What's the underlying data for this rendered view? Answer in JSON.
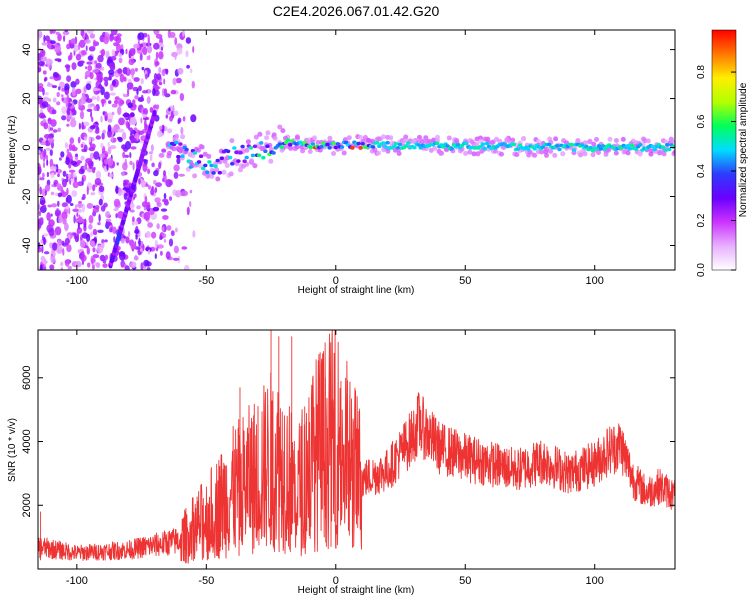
{
  "figure_title": "C2E4.2026.067.01.42.G20",
  "chart_data": [
    {
      "type": "heatmap",
      "id": "spectrogram",
      "xlabel": "Height of straight line (km)",
      "ylabel": "Frequency (Hz)",
      "xlim": [
        -115,
        131
      ],
      "ylim": [
        -50,
        48
      ],
      "xticks": [
        -100,
        -50,
        0,
        50,
        100
      ],
      "yticks": [
        -40,
        -20,
        0,
        20,
        40
      ],
      "colorbar": {
        "label": "Normalized spectral amplitude",
        "range": [
          0,
          0.97
        ],
        "ticks": [
          "0.0",
          "0.2",
          "0.4",
          "0.6",
          "0.8"
        ],
        "tick_values": [
          0.0,
          0.2,
          0.4,
          0.6,
          0.8
        ],
        "colors": [
          "#ffffff",
          "#e8b0ff",
          "#cc33ff",
          "#6a00ff",
          "#2d3cff",
          "#00ddff",
          "#00ff5a",
          "#b4ff00",
          "#ffee00",
          "#ff7700",
          "#ff0000"
        ]
      },
      "features": {
        "noise_region_x": [
          -115,
          -55
        ],
        "diagonal_line": {
          "x": [
            -87,
            -70
          ],
          "y": [
            -48,
            14
          ]
        },
        "carrier_track": [
          {
            "x": -62,
            "y": 1
          },
          {
            "x": -55,
            "y": -5
          },
          {
            "x": -48,
            "y": -8
          },
          {
            "x": -40,
            "y": -4
          },
          {
            "x": -30,
            "y": -1
          },
          {
            "x": -20,
            "y": 2
          },
          {
            "x": -10,
            "y": 1
          },
          {
            "x": 0,
            "y": 1
          },
          {
            "x": 20,
            "y": 1
          },
          {
            "x": 60,
            "y": 0.5
          },
          {
            "x": 100,
            "y": 0
          },
          {
            "x": 131,
            "y": 0
          }
        ]
      }
    },
    {
      "type": "line",
      "id": "snr",
      "xlabel": "Height of straight line (km)",
      "ylabel": "SNR (10 * v/v)",
      "xlim": [
        -115,
        131
      ],
      "ylim": [
        0,
        7500
      ],
      "xticks": [
        -100,
        -50,
        0,
        50,
        100
      ],
      "yticks": [
        2000,
        4000,
        6000
      ],
      "color": "#ee3333",
      "envelope": {
        "x": [
          -115,
          -100,
          -80,
          -60,
          -50,
          -40,
          -30,
          -25,
          -20,
          -15,
          -10,
          -5,
          0,
          5,
          10,
          20,
          30,
          32,
          40,
          50,
          60,
          70,
          80,
          90,
          100,
          105,
          110,
          115,
          120,
          125,
          131
        ],
        "y": [
          700,
          500,
          600,
          900,
          1600,
          2400,
          3000,
          3400,
          3200,
          2400,
          3400,
          3900,
          4200,
          3500,
          2800,
          3100,
          4200,
          4600,
          3800,
          3500,
          3300,
          3100,
          3400,
          3000,
          3300,
          3700,
          3900,
          2800,
          2400,
          2600,
          2300
        ]
      },
      "spikes": [
        {
          "x": -25,
          "y": 7500
        },
        {
          "x": -22,
          "y": 7300
        },
        {
          "x": -17,
          "y": 7300
        },
        {
          "x": -12,
          "y": 5100
        },
        {
          "x": -4,
          "y": 6000
        },
        {
          "x": 2,
          "y": 5900
        },
        {
          "x": -37,
          "y": 5700
        },
        {
          "x": -114,
          "y": 1800
        }
      ]
    }
  ]
}
